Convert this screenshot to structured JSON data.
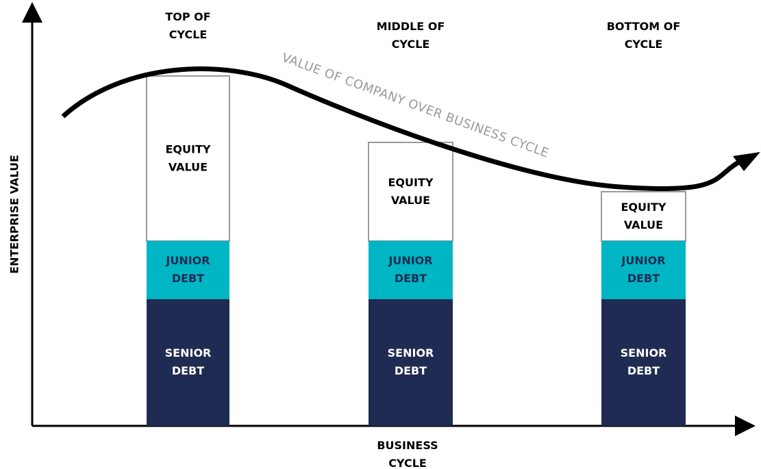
{
  "y_axis_label": "ENTERPRISE VALUE",
  "x_axis_label": [
    "BUSINESS",
    "CYCLE"
  ],
  "curve_label": "VALUE OF COMPANY OVER BUSINESS CYCLE",
  "columns": [
    {
      "title": [
        "TOP OF",
        "CYCLE"
      ],
      "equity": [
        "EQUITY",
        "VALUE"
      ],
      "junior": [
        "JUNIOR",
        "DEBT"
      ],
      "senior": [
        "SENIOR",
        "DEBT"
      ]
    },
    {
      "title": [
        "MIDDLE OF",
        "CYCLE"
      ],
      "equity": [
        "EQUITY",
        "VALUE"
      ],
      "junior": [
        "JUNIOR",
        "DEBT"
      ],
      "senior": [
        "SENIOR",
        "DEBT"
      ]
    },
    {
      "title": [
        "BOTTOM OF",
        "CYCLE"
      ],
      "equity": [
        "EQUITY",
        "VALUE"
      ],
      "junior": [
        "JUNIOR",
        "DEBT"
      ],
      "senior": [
        "SENIOR",
        "DEBT"
      ]
    }
  ]
}
